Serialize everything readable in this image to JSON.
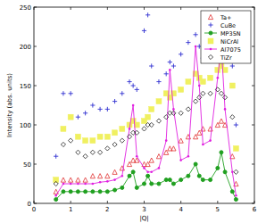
{
  "chart_data": {
    "type": "scatter",
    "x_label": "|Q|",
    "y_label": "Intensity (abs. units)",
    "xlim": [
      0,
      6
    ],
    "xticks": [
      0,
      1,
      2,
      3,
      4,
      5,
      6
    ],
    "ylim": [
      0,
      250
    ],
    "yticks": [
      0,
      50,
      100,
      150,
      200,
      250
    ],
    "legend": "upper right",
    "grid": false,
    "x": [
      0.6,
      0.8,
      1.0,
      1.2,
      1.4,
      1.6,
      1.8,
      2.0,
      2.2,
      2.4,
      2.6,
      2.7,
      2.8,
      3.0,
      3.1,
      3.2,
      3.4,
      3.6,
      3.7,
      3.8,
      4.0,
      4.2,
      4.4,
      4.5,
      4.6,
      4.8,
      5.0,
      5.1,
      5.2,
      5.4,
      5.5
    ],
    "series": [
      {
        "name": "Ta+",
        "color": "#e03030",
        "marker": "triangle",
        "line_style": "none",
        "values": [
          15,
          30,
          30,
          30,
          30,
          35,
          35,
          35,
          40,
          45,
          50,
          55,
          55,
          50,
          50,
          55,
          60,
          65,
          70,
          70,
          80,
          85,
          85,
          90,
          95,
          95,
          100,
          105,
          100,
          60,
          25
        ]
      },
      {
        "name": "CuBe",
        "color": "#3030d0",
        "marker": "plus",
        "line_style": "none",
        "values": [
          60,
          140,
          140,
          110,
          115,
          125,
          120,
          120,
          130,
          140,
          155,
          150,
          145,
          220,
          240,
          175,
          155,
          165,
          180,
          175,
          190,
          205,
          215,
          200,
          185,
          205,
          205,
          220,
          215,
          175,
          100
        ]
      },
      {
        "name": "MP35N",
        "color": "#20a020",
        "marker": "circle",
        "line_style": "solid",
        "values": [
          5,
          15,
          15,
          15,
          15,
          15,
          15,
          15,
          17,
          20,
          35,
          40,
          20,
          25,
          35,
          25,
          25,
          30,
          30,
          25,
          30,
          35,
          50,
          35,
          30,
          30,
          45,
          65,
          40,
          15,
          5
        ]
      },
      {
        "name": "NiCrAl",
        "color": "#f0f060",
        "marker": "square",
        "line_style": "none",
        "values": [
          30,
          95,
          110,
          85,
          80,
          80,
          85,
          85,
          90,
          95,
          100,
          105,
          100,
          105,
          110,
          120,
          130,
          140,
          135,
          140,
          145,
          155,
          165,
          160,
          155,
          160,
          170,
          175,
          170,
          150,
          70
        ]
      },
      {
        "name": "Al7075",
        "color": "#e020e0",
        "marker": "dot",
        "line_style": "solid",
        "values": [
          10,
          25,
          25,
          25,
          25,
          25,
          27,
          28,
          30,
          35,
          95,
          125,
          60,
          45,
          40,
          40,
          45,
          80,
          170,
          120,
          55,
          60,
          200,
          150,
          75,
          80,
          160,
          200,
          120,
          40,
          10
        ]
      },
      {
        "name": "TiZr",
        "color": "#202020",
        "marker": "diamond",
        "line_style": "none",
        "values": [
          25,
          75,
          80,
          65,
          60,
          65,
          65,
          70,
          75,
          80,
          85,
          90,
          90,
          95,
          100,
          100,
          105,
          110,
          115,
          115,
          115,
          120,
          130,
          135,
          140,
          140,
          145,
          140,
          135,
          110,
          40
        ]
      }
    ]
  }
}
